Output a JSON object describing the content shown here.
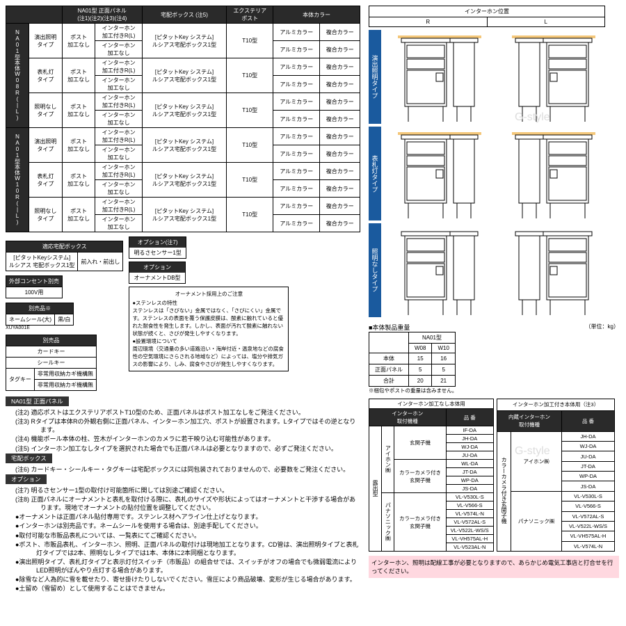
{
  "mainTable": {
    "headers": {
      "panel": "NA01型 正面パネル\n(注1)(注2)(注3)(注4)",
      "box": "宅配ボックス (注5)",
      "post": "エクステリア\nポスト",
      "color": "本体カラー"
    },
    "leftGroups": [
      "NA01型本体W08R(|L)",
      "NA01型本体W10R(|L)"
    ],
    "types": [
      "演出照明\nタイプ",
      "表札灯\nタイプ",
      "照明なし\nタイプ"
    ],
    "post": "ポスト\n加工なし",
    "ihA": "インターホン\n加工付きR(L)",
    "ihB": "インターホン\n加工なし",
    "box1": "[ピタットKey システム]\nルシアス宅配ボックス1型",
    "postType": "T10型",
    "color1": "アルミカラー",
    "color2": "複合カラー"
  },
  "smallBoxes": {
    "s1h": "適応宅配ボックス",
    "s1a": "[ピタットKeyシステム]\nルシアス 宅配ボックス1型",
    "s1b": "前入れ・前出し",
    "s2h": "外部コンセント別売",
    "s2a": "100V用",
    "s3h": "別売品※",
    "s3a": "ネームシール(大)",
    "s3b": "黒/白",
    "s3c": "XUYA001E",
    "s4h": "別売品",
    "s4r1": "カードキー",
    "s4r2": "シールキー",
    "s4r3a": "タグキー",
    "s4r3b": "非常用収納カギ機構無",
    "s4r3c": "非常用収納カギ機構無",
    "o1h": "オプション(注7)",
    "o1a": "明るさセンサー1型",
    "o2h": "オプション",
    "o2a": "オーナメントDB型"
  },
  "noticeTitle": "オーナメント採用上のご注意",
  "noticeBody": "●ステンレスの特性\nステンレスは「さびない」金属ではなく、「さびにくい」金属です。ステンレスの表面を覆う保護皮膜は、酸素に触れていると優れた耐食性を発生します。しかし、表面が汚れて酸素に触れない状態が続くと、さびが発生しやすくなります。\n●設置環境について\n周辺環境（交通量の多い道路沿い・海岸付近・温泉地などの腐食性の空気環境にさらされる地域など）によっては、塩分や排気ガスの影響により、しみ、腐食やさびが発生しやすくなります。",
  "notesTitle1": "NA01型 正面パネル",
  "notesTitle2": "宅配ボックス",
  "notesTitle3": "オプション",
  "notes": {
    "n2": "(注2) 適応ポストはエクステリアポストT10型のため、正面パネルはポスト加工なしをご発注ください。",
    "n3": "(注3) Rタイプは本体Rの外観右側に正面パネル、インターホン加工穴、ポストが設置されます。Lタイプではその逆となります。",
    "n4": "(注4) 機能ポール本体の柱、笠木がインターホンのカメラに若干映り込む可能性があります。",
    "n5": "(注5) インターホン加工なしタイプを選択された場合でも正面パネルは必要となりますので、必ずご発注ください。",
    "n6": "(注6) カードキー・シールキー・タグキーは宅配ボックスには同包装されておりませんので、必要数をご発注ください。",
    "n7": "(注7) 明るさセンサー1型の取付け可能箇所に関しては別途ご確認ください。",
    "n8": "(注8) 正面パネルにオーナメントと表札を取付ける際に、表札のサイズや形状によってはオーナメントと干渉する場合があります。現地でオーナメントの貼付位置を調整してください。",
    "b1": "●オーナメントは正面パネル貼付専用です。ステンレス材ヘアライン仕上げとなります。",
    "b2": "●インターホンは別売品です。ネームシールを使用する場合は、別途手配してください。",
    "b3": "●取付可能な市販品表札については、一覧表にてご確認ください。",
    "b4": "●ポスト、市販品表札、インターホン、照明、正面パネルの取付けは現地加工となります。CD管は、演出照明タイプと表札灯タイプでは2本、照明なしタイプでは1本、本体に2本同梱となります。",
    "b5": "●演出照明タイプ、表札灯タイプと表示灯付スイッチ（市販品）の組合せでは、スイッチがオフの場合でも微弱電流によりLED照明がぼんやり点灯する場合があります。",
    "b6": "●除雪など人為的に雪を載せたり、寄せ掛けたりしないでください。雪圧により商品破壊、変形が生じる場合があります。",
    "b7": "●土留め（雪留め）として使用することはできません。"
  },
  "ih": {
    "title": "インターホン位置",
    "R": "R",
    "L": "L"
  },
  "diagLabels": [
    "演出照明タイプ",
    "表札灯タイプ",
    "照明なしタイプ"
  ],
  "weight": {
    "title": "■本体製品重量",
    "unit": "（単位：kg）",
    "model": "NA01型",
    "w08": "W08",
    "w10": "W10",
    "r1": "本体",
    "r1a": "15",
    "r1b": "16",
    "r2": "正面パネル",
    "r2a": "5",
    "r2b": "5",
    "r3": "合計",
    "r3a": "20",
    "r3b": "21",
    "note": "※梱包やポストの重量は含みません。"
  },
  "tbl1": {
    "title": "インターホン加工なし本体用",
    "hA": "インターホン\n取付機種",
    "hB": "品  番",
    "lg1": "露出型",
    "g1": "アイホン㈱",
    "g1a": "玄関子機",
    "g1r": [
      "IF-DA",
      "JH-DA",
      "WJ-DA",
      "JU-DA",
      "WL-DA",
      "JT-DA",
      "WP-DA",
      "JS-DA"
    ],
    "g1b": "カラーカメラ付き\n玄関子機",
    "g2": "パナソニック㈱",
    "g2a": "カラーカメラ付き\n玄関子機",
    "g2r": [
      "VL-V530L-S",
      "VL-V566-S",
      "VL-V574L-N",
      "VL-V572AL-S",
      "VL-V522L-WS/S",
      "VL-VH575AL-H",
      "VL-V523AL-N"
    ]
  },
  "tbl2": {
    "title": "インターホン加工付き本体用（注3）",
    "hA": "内蔵インターホン\n取付機種",
    "hB": "品  番",
    "g1": "アイホン㈱",
    "g1a": "カラーカメラ付き玄関子機",
    "g1r": [
      "JH-DA",
      "WJ-DA",
      "JU-DA",
      "JT-DA",
      "WP-DA",
      "JS-DA"
    ],
    "g2": "パナソニック㈱",
    "g2r": [
      "VL-V530L-S",
      "VL-V566-S",
      "VL-V572AL-S",
      "VL-V522L-WS/S",
      "VL-VH575AL-H",
      "VL-V574L-N"
    ]
  },
  "pink": "インターホン、照明は配線工事が必要となりますので、あらかじめ電気工事店と打合せを行ってください。",
  "watermark": "G-style"
}
